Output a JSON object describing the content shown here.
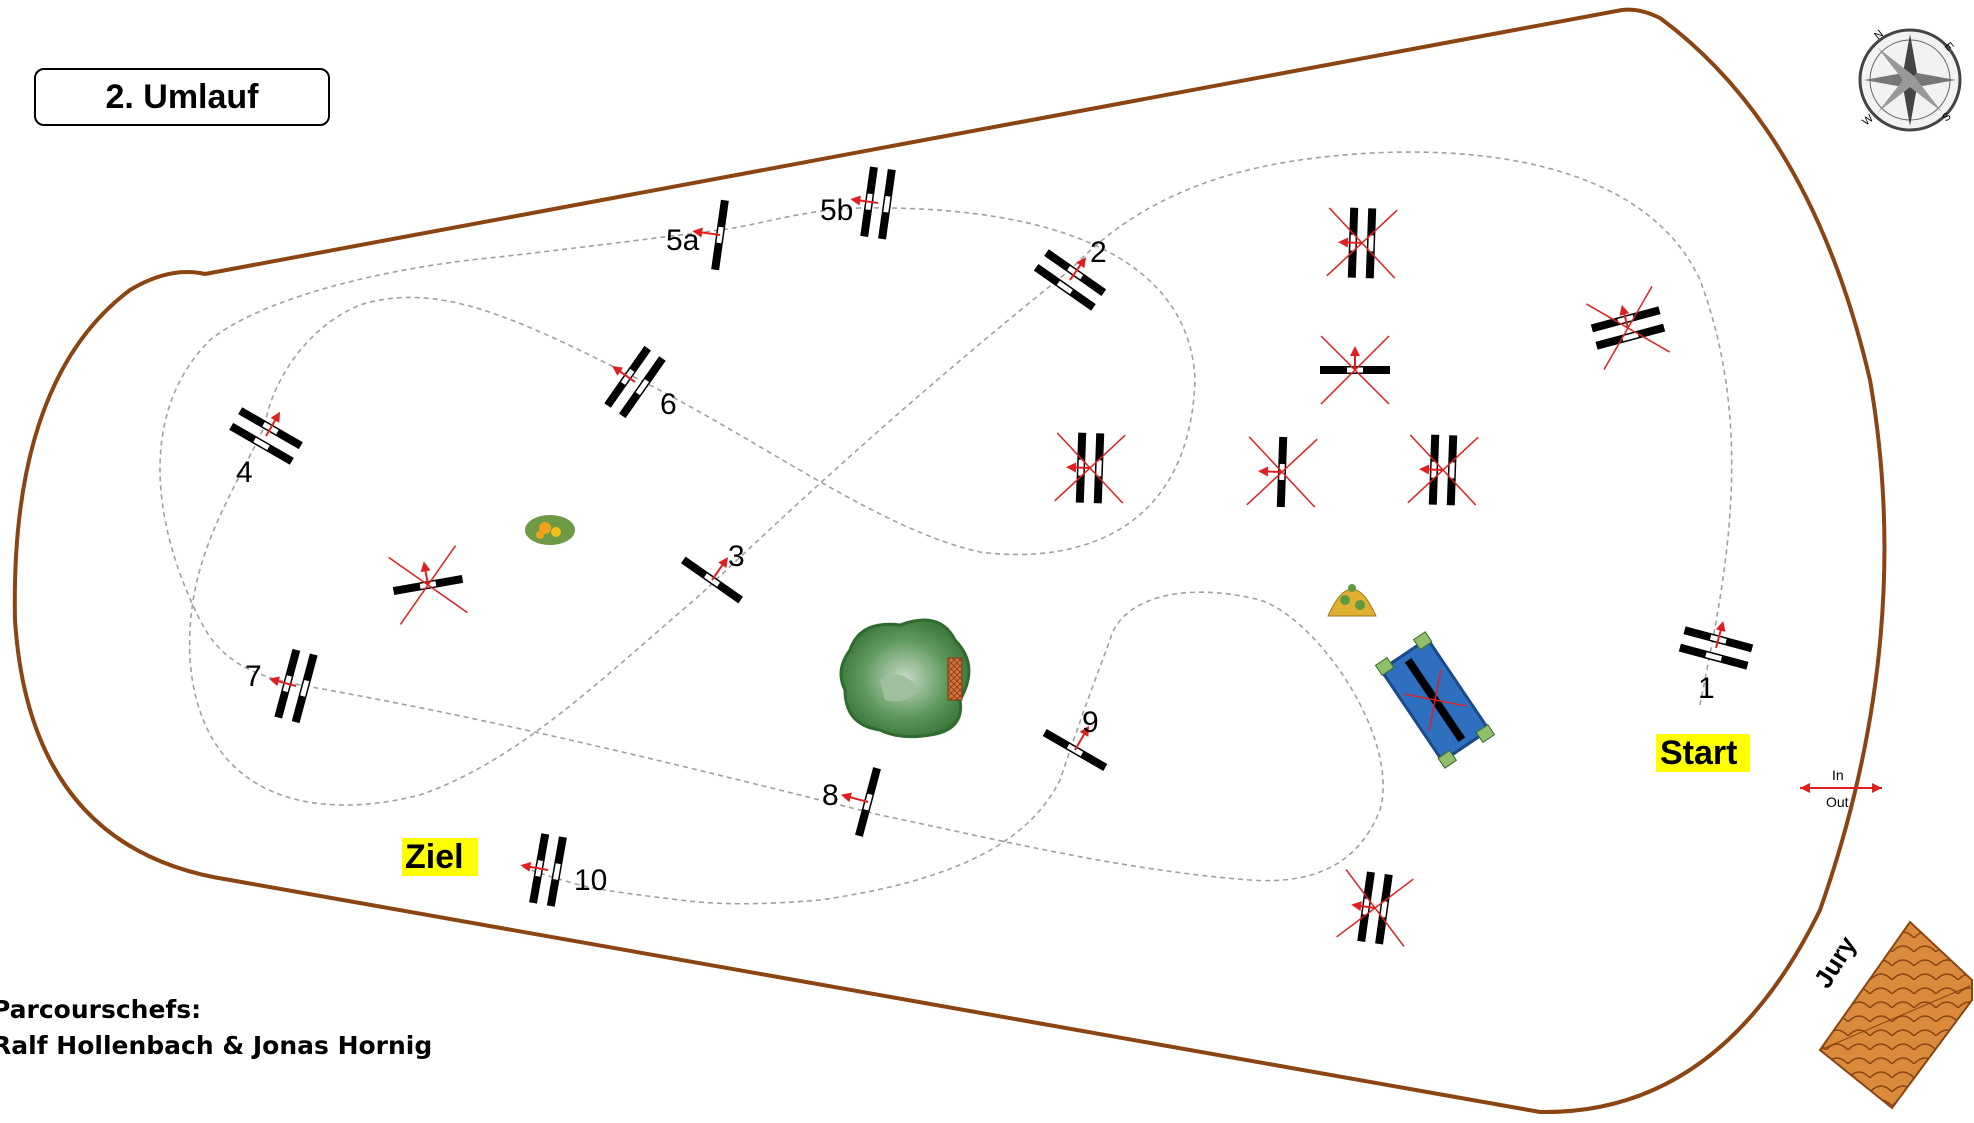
{
  "title": "2. Umlauf",
  "credits": {
    "line1": "Parcourschefs:",
    "line2": "Ralf Hollenbach & Jonas Hornig"
  },
  "start_label": "Start",
  "finish_label": "Ziel",
  "jury_label": "Jury",
  "gate": {
    "in": "In",
    "out": "Out"
  },
  "compass": {
    "n": "N",
    "e": "E",
    "s": "S",
    "w": "W"
  },
  "obstacles": [
    {
      "id": "1",
      "label": "1",
      "kind": "oxer"
    },
    {
      "id": "2",
      "label": "2",
      "kind": "oxer"
    },
    {
      "id": "3",
      "label": "3",
      "kind": "vertical"
    },
    {
      "id": "4",
      "label": "4",
      "kind": "oxer"
    },
    {
      "id": "5a",
      "label": "5a",
      "kind": "vertical"
    },
    {
      "id": "5b",
      "label": "5b",
      "kind": "oxer"
    },
    {
      "id": "6",
      "label": "6",
      "kind": "oxer"
    },
    {
      "id": "7",
      "label": "7",
      "kind": "oxer"
    },
    {
      "id": "8",
      "label": "8",
      "kind": "vertical"
    },
    {
      "id": "9",
      "label": "9",
      "kind": "vertical"
    },
    {
      "id": "10",
      "label": "10",
      "kind": "oxer"
    }
  ],
  "colors": {
    "arena_border": "#8b4513",
    "course_line": "#a0a0a0",
    "highlight": "#ffff00",
    "arrow": "#e02020",
    "water": "#2f6fbf",
    "jury_roof": "#d2691e"
  }
}
